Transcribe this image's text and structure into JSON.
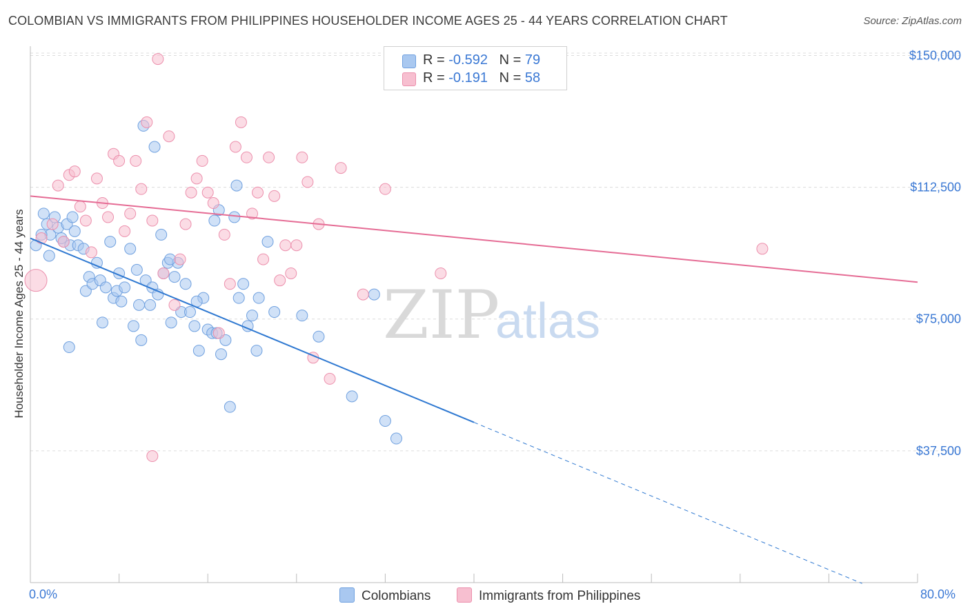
{
  "title": "COLOMBIAN VS IMMIGRANTS FROM PHILIPPINES HOUSEHOLDER INCOME AGES 25 - 44 YEARS CORRELATION CHART",
  "source": "Source: ZipAtlas.com",
  "watermark": {
    "zip": "ZIP",
    "atlas": "atlas"
  },
  "legend": {
    "rows": [
      {
        "r_label": "R =",
        "r_value": "-0.592",
        "n_label": "N =",
        "n_value": "79",
        "color": "#a9c8f0",
        "border": "#6fa0df"
      },
      {
        "r_label": "R =",
        "r_value": "-0.191",
        "n_label": "N =",
        "n_value": "58",
        "color": "#f7bfd0",
        "border": "#ec8fac"
      }
    ]
  },
  "bottom_legend": {
    "series1": "Colombians",
    "series2": "Immigrants from Philippines"
  },
  "colors": {
    "blue_fill": "#a9c8f0",
    "blue_stroke": "#6fa0df",
    "blue_line": "#2e78d1",
    "pink_fill": "#f7bfd0",
    "pink_stroke": "#ec8fac",
    "pink_line": "#e56b94",
    "grid": "#dcdcdc",
    "axis_text": "#3a78d4"
  },
  "chart_data": {
    "type": "scatter",
    "title": "COLOMBIAN VS IMMIGRANTS FROM PHILIPPINES HOUSEHOLDER INCOME AGES 25 - 44 YEARS CORRELATION CHART",
    "xlabel": "",
    "ylabel": "Householder Income Ages 25 - 44 years",
    "xlim": [
      0,
      80
    ],
    "ylim": [
      0,
      155000
    ],
    "x_tick_labels": [
      "0.0%",
      "80.0%"
    ],
    "y_ticks": [
      37500,
      75000,
      112500,
      150000
    ],
    "y_tick_labels": [
      "$37,500",
      "$75,000",
      "$112,500",
      "$150,000"
    ],
    "grid": true,
    "series": [
      {
        "name": "Colombians",
        "r": -0.592,
        "n": 79,
        "trend": {
          "x0": 0,
          "y0": 98000,
          "x_solid_end": 40,
          "x_end": 80,
          "slope": -1310
        },
        "points": [
          [
            0.5,
            96
          ],
          [
            1.2,
            105
          ],
          [
            1.5,
            102
          ],
          [
            1.8,
            99
          ],
          [
            2.2,
            104
          ],
          [
            2.5,
            101
          ],
          [
            3.0,
            97
          ],
          [
            3.3,
            102
          ],
          [
            3.6,
            96
          ],
          [
            4.0,
            100
          ],
          [
            1.0,
            99
          ],
          [
            1.7,
            93
          ],
          [
            2.8,
            98
          ],
          [
            3.8,
            104
          ],
          [
            4.3,
            96
          ],
          [
            4.8,
            95
          ],
          [
            5.0,
            83
          ],
          [
            5.3,
            87
          ],
          [
            5.6,
            85
          ],
          [
            6.0,
            91
          ],
          [
            6.3,
            86
          ],
          [
            6.8,
            84
          ],
          [
            7.2,
            97
          ],
          [
            7.5,
            81
          ],
          [
            7.8,
            83
          ],
          [
            8.0,
            88
          ],
          [
            8.5,
            84
          ],
          [
            9.0,
            95
          ],
          [
            9.3,
            73
          ],
          [
            9.6,
            89
          ],
          [
            10.0,
            69
          ],
          [
            10.4,
            86
          ],
          [
            10.8,
            79
          ],
          [
            11.0,
            84
          ],
          [
            11.5,
            82
          ],
          [
            12.0,
            88
          ],
          [
            12.4,
            91
          ],
          [
            12.7,
            74
          ],
          [
            13.0,
            87
          ],
          [
            13.3,
            91
          ],
          [
            13.6,
            77
          ],
          [
            14.0,
            85
          ],
          [
            14.4,
            77
          ],
          [
            14.8,
            73
          ],
          [
            15.2,
            66
          ],
          [
            15.6,
            81
          ],
          [
            16.0,
            72
          ],
          [
            16.4,
            71
          ],
          [
            16.8,
            71
          ],
          [
            17.2,
            65
          ],
          [
            17.6,
            69
          ],
          [
            18.0,
            50
          ],
          [
            18.4,
            104
          ],
          [
            18.8,
            81
          ],
          [
            19.2,
            85
          ],
          [
            19.6,
            73
          ],
          [
            20.0,
            76
          ],
          [
            20.4,
            66
          ],
          [
            3.5,
            67
          ],
          [
            6.5,
            74
          ],
          [
            8.2,
            80
          ],
          [
            9.8,
            79
          ],
          [
            11.8,
            99
          ],
          [
            15.0,
            80
          ],
          [
            16.6,
            103
          ],
          [
            17.0,
            106
          ],
          [
            18.6,
            113
          ],
          [
            10.2,
            130
          ],
          [
            11.2,
            124
          ],
          [
            20.6,
            81
          ],
          [
            21.4,
            97
          ],
          [
            22.0,
            77
          ],
          [
            24.5,
            76
          ],
          [
            26.0,
            70
          ],
          [
            29.0,
            53
          ],
          [
            31.0,
            82
          ],
          [
            32.0,
            46
          ],
          [
            33.0,
            41
          ],
          [
            12.6,
            92
          ]
        ]
      },
      {
        "name": "Immigrants from Philippines",
        "r": -0.191,
        "n": 58,
        "trend": {
          "x0": 0,
          "y0": 110000,
          "x_end": 80,
          "y_end": 85500
        },
        "points": [
          [
            0.5,
            86
          ],
          [
            1.0,
            98
          ],
          [
            2.0,
            102
          ],
          [
            2.5,
            113
          ],
          [
            3.0,
            97
          ],
          [
            3.5,
            116
          ],
          [
            4.0,
            117
          ],
          [
            4.5,
            107
          ],
          [
            5.0,
            103
          ],
          [
            5.5,
            94
          ],
          [
            6.0,
            115
          ],
          [
            6.5,
            108
          ],
          [
            7.0,
            104
          ],
          [
            7.5,
            122
          ],
          [
            8.0,
            120
          ],
          [
            8.5,
            100
          ],
          [
            9.0,
            105
          ],
          [
            9.5,
            120
          ],
          [
            10.0,
            112
          ],
          [
            10.5,
            131
          ],
          [
            11.0,
            103
          ],
          [
            11.5,
            149
          ],
          [
            12.0,
            88
          ],
          [
            12.5,
            127
          ],
          [
            13.0,
            79
          ],
          [
            13.5,
            92
          ],
          [
            14.0,
            102
          ],
          [
            14.5,
            111
          ],
          [
            15.0,
            115
          ],
          [
            15.5,
            120
          ],
          [
            16.0,
            111
          ],
          [
            16.5,
            108
          ],
          [
            17.0,
            71
          ],
          [
            17.5,
            99
          ],
          [
            18.0,
            85
          ],
          [
            18.5,
            124
          ],
          [
            19.0,
            131
          ],
          [
            19.5,
            121
          ],
          [
            20.0,
            105
          ],
          [
            20.5,
            111
          ],
          [
            21.0,
            92
          ],
          [
            21.5,
            121
          ],
          [
            22.0,
            110
          ],
          [
            22.5,
            86
          ],
          [
            23.0,
            96
          ],
          [
            23.5,
            88
          ],
          [
            24.0,
            96
          ],
          [
            24.5,
            121
          ],
          [
            25.0,
            114
          ],
          [
            25.5,
            64
          ],
          [
            26.0,
            102
          ],
          [
            27.0,
            58
          ],
          [
            28.0,
            118
          ],
          [
            30.0,
            82
          ],
          [
            32.0,
            112
          ],
          [
            37.0,
            88
          ],
          [
            66.0,
            95
          ],
          [
            11.0,
            36
          ]
        ]
      }
    ]
  }
}
